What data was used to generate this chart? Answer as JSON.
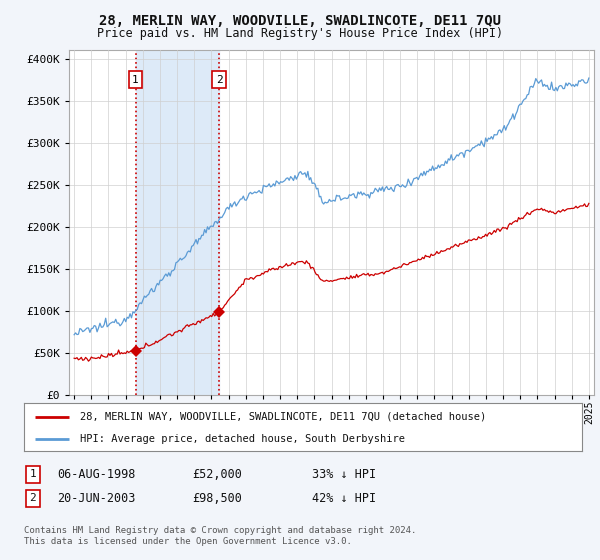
{
  "title": "28, MERLIN WAY, WOODVILLE, SWADLINCOTE, DE11 7QU",
  "subtitle": "Price paid vs. HM Land Registry's House Price Index (HPI)",
  "legend_line1": "28, MERLIN WAY, WOODVILLE, SWADLINCOTE, DE11 7QU (detached house)",
  "legend_line2": "HPI: Average price, detached house, South Derbyshire",
  "footer": "Contains HM Land Registry data © Crown copyright and database right 2024.\nThis data is licensed under the Open Government Licence v3.0.",
  "sale1_date": "06-AUG-1998",
  "sale1_price": 52000,
  "sale1_note": "33% ↓ HPI",
  "sale2_date": "20-JUN-2003",
  "sale2_price": 98500,
  "sale2_note": "42% ↓ HPI",
  "sale1_x": 1998.58,
  "sale2_x": 2003.45,
  "ylim": [
    0,
    410000
  ],
  "xlim_start": 1994.7,
  "xlim_end": 2025.3,
  "hpi_color": "#5b9bd5",
  "price_color": "#cc0000",
  "background_color": "#f2f5fa",
  "plot_bg_color": "#ffffff",
  "shade_color": "#ddeaf8",
  "grid_color": "#d0d0d0"
}
